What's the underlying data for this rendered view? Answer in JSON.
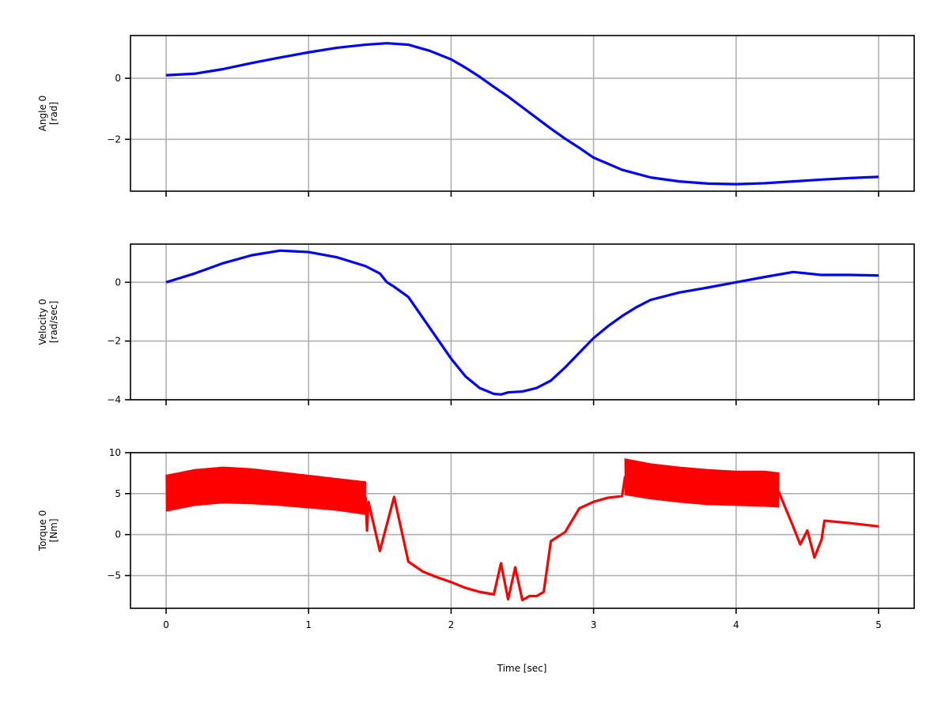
{
  "figure": {
    "shared_xlabel": "Time [sec]"
  },
  "chart_data": [
    {
      "type": "line",
      "ylabel": [
        "Angle 0",
        "[rad]"
      ],
      "xlabel": "",
      "xlim": [
        -0.25,
        5.25
      ],
      "ylim": [
        -3.7,
        1.4
      ],
      "x_ticks": [
        0,
        1,
        2,
        3,
        4,
        5
      ],
      "x_tick_labels_visible": false,
      "y_ticks": [
        0,
        -2
      ],
      "y_tick_labels": [
        "0",
        "−2"
      ],
      "grid": true,
      "series": [
        {
          "color": "#0000ff",
          "x": [
            0,
            0.2,
            0.4,
            0.6,
            0.8,
            1.0,
            1.2,
            1.4,
            1.55,
            1.7,
            1.85,
            2.0,
            2.1,
            2.2,
            2.3,
            2.4,
            2.5,
            2.6,
            2.7,
            2.8,
            2.9,
            3.0,
            3.2,
            3.4,
            3.6,
            3.8,
            4.0,
            4.2,
            4.4,
            4.6,
            4.8,
            5.0
          ],
          "y": [
            0.1,
            0.15,
            0.3,
            0.5,
            0.68,
            0.85,
            1.0,
            1.1,
            1.15,
            1.1,
            0.9,
            0.62,
            0.35,
            0.05,
            -0.28,
            -0.6,
            -0.95,
            -1.3,
            -1.65,
            -1.98,
            -2.28,
            -2.6,
            -3.0,
            -3.25,
            -3.38,
            -3.45,
            -3.47,
            -3.44,
            -3.38,
            -3.32,
            -3.27,
            -3.23
          ]
        }
      ]
    },
    {
      "type": "line",
      "ylabel": [
        "Velocity 0",
        "[rad/sec]"
      ],
      "xlabel": "",
      "xlim": [
        -0.25,
        5.25
      ],
      "ylim": [
        -4.0,
        1.3
      ],
      "x_ticks": [
        0,
        1,
        2,
        3,
        4,
        5
      ],
      "x_tick_labels_visible": false,
      "y_ticks": [
        0,
        -2,
        -4
      ],
      "y_tick_labels": [
        "0",
        "−2",
        "−4"
      ],
      "grid": true,
      "series": [
        {
          "color": "#0000ff",
          "x": [
            0,
            0.1,
            0.2,
            0.4,
            0.6,
            0.8,
            1.0,
            1.2,
            1.4,
            1.5,
            1.55,
            1.6,
            1.7,
            1.8,
            1.9,
            2.0,
            2.1,
            2.2,
            2.3,
            2.35,
            2.4,
            2.5,
            2.6,
            2.7,
            2.8,
            2.9,
            3.0,
            3.1,
            3.2,
            3.3,
            3.4,
            3.6,
            3.8,
            4.0,
            4.2,
            4.4,
            4.6,
            4.8,
            5.0
          ],
          "y": [
            0.0,
            0.15,
            0.3,
            0.65,
            0.92,
            1.08,
            1.03,
            0.85,
            0.55,
            0.3,
            0.0,
            -0.15,
            -0.5,
            -1.2,
            -1.9,
            -2.6,
            -3.2,
            -3.6,
            -3.8,
            -3.82,
            -3.75,
            -3.72,
            -3.6,
            -3.35,
            -2.9,
            -2.4,
            -1.9,
            -1.5,
            -1.15,
            -0.85,
            -0.6,
            -0.35,
            -0.18,
            0.0,
            0.18,
            0.35,
            0.25,
            0.25,
            0.23
          ]
        }
      ]
    },
    {
      "type": "line",
      "ylabel": [
        "Torque 0",
        "[Nm]"
      ],
      "xlabel": "Time [sec]",
      "xlim": [
        -0.25,
        5.25
      ],
      "ylim": [
        -9.0,
        10.0
      ],
      "x_ticks": [
        0,
        1,
        2,
        3,
        4,
        5
      ],
      "x_tick_labels": [
        "0",
        "1",
        "2",
        "3",
        "4",
        "5"
      ],
      "x_tick_labels_visible": true,
      "y_ticks": [
        10,
        5,
        0,
        -5
      ],
      "y_tick_labels": [
        "10",
        "5",
        "0",
        "−5"
      ],
      "grid": true,
      "series": [
        {
          "color": "#ff0000",
          "oscillation_bands": [
            {
              "x": [
                0,
                0.2,
                0.4,
                0.6,
                0.8,
                1.0,
                1.2,
                1.4
              ],
              "upper": [
                7.3,
                8.0,
                8.3,
                8.1,
                7.7,
                7.3,
                6.9,
                6.5
              ],
              "lower": [
                2.8,
                3.5,
                3.8,
                3.7,
                3.5,
                3.2,
                2.9,
                2.4
              ]
            },
            {
              "x": [
                3.22,
                3.4,
                3.6,
                3.8,
                4.0,
                4.2,
                4.3
              ],
              "upper": [
                9.3,
                8.7,
                8.3,
                8.0,
                7.8,
                7.8,
                7.6
              ],
              "lower": [
                4.8,
                4.3,
                3.9,
                3.6,
                3.5,
                3.4,
                3.3
              ]
            }
          ],
          "x": [
            0,
            0.2,
            0.4,
            0.6,
            0.8,
            1.0,
            1.2,
            1.4,
            1.41,
            1.42,
            1.5,
            1.6,
            1.7,
            1.8,
            1.9,
            2.0,
            2.1,
            2.2,
            2.3,
            2.35,
            2.4,
            2.45,
            2.5,
            2.55,
            2.6,
            2.65,
            2.7,
            2.8,
            2.9,
            3.0,
            3.1,
            3.2,
            3.22,
            3.4,
            3.6,
            3.8,
            4.0,
            4.2,
            4.3,
            4.4,
            4.45,
            4.5,
            4.55,
            4.6,
            4.62,
            4.8,
            5.0
          ],
          "y": [
            5.0,
            5.8,
            6.0,
            5.8,
            5.6,
            5.2,
            4.9,
            4.5,
            0.5,
            4.0,
            -2.0,
            4.6,
            -3.3,
            -4.5,
            -5.2,
            -5.8,
            -6.5,
            -7.0,
            -7.3,
            -3.5,
            -7.9,
            -4.0,
            -8.0,
            -7.5,
            -7.5,
            -7.0,
            -0.8,
            0.3,
            3.2,
            4.0,
            4.5,
            4.7,
            7.0,
            6.5,
            6.0,
            5.8,
            5.6,
            5.5,
            5.2,
            1.0,
            -1.2,
            0.5,
            -2.8,
            -0.6,
            1.7,
            1.4,
            1.0
          ]
        }
      ]
    }
  ]
}
